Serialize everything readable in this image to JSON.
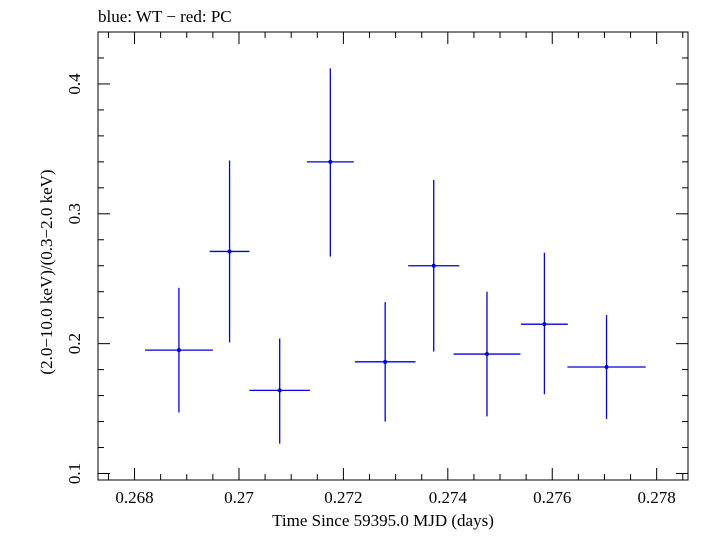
{
  "title": "blue: WT − red: PC",
  "chart_data": {
    "type": "scatter",
    "title": "blue: WT − red: PC",
    "xlabel": "Time Since 59395.0 MJD (days)",
    "ylabel": "(2.0−10.0 keV)/(0.3−2.0 keV)",
    "xlim": [
      0.2673,
      0.2786
    ],
    "ylim": [
      0.095,
      0.44
    ],
    "x_ticks": [
      {
        "value": 0.268,
        "label": "0.268"
      },
      {
        "value": 0.27,
        "label": "0.27"
      },
      {
        "value": 0.272,
        "label": "0.272"
      },
      {
        "value": 0.274,
        "label": "0.274"
      },
      {
        "value": 0.276,
        "label": "0.276"
      },
      {
        "value": 0.278,
        "label": "0.278"
      }
    ],
    "y_ticks": [
      {
        "value": 0.1,
        "label": "0.1"
      },
      {
        "value": 0.2,
        "label": "0.2"
      },
      {
        "value": 0.3,
        "label": "0.3"
      },
      {
        "value": 0.4,
        "label": "0.4"
      }
    ],
    "grid": false,
    "series": [
      {
        "name": "WT",
        "color": "#0000dd",
        "points": [
          {
            "x": 0.26885,
            "xerr": 0.00065,
            "y": 0.195,
            "ylo": 0.147,
            "yhi": 0.243
          },
          {
            "x": 0.26982,
            "xerr": 0.00038,
            "y": 0.271,
            "ylo": 0.201,
            "yhi": 0.341
          },
          {
            "x": 0.27078,
            "xerr": 0.00058,
            "y": 0.164,
            "ylo": 0.123,
            "yhi": 0.204
          },
          {
            "x": 0.27175,
            "xerr": 0.00045,
            "y": 0.34,
            "ylo": 0.267,
            "yhi": 0.412
          },
          {
            "x": 0.2728,
            "xerr": 0.00058,
            "y": 0.186,
            "ylo": 0.14,
            "yhi": 0.232
          },
          {
            "x": 0.27373,
            "xerr": 0.00049,
            "y": 0.26,
            "ylo": 0.194,
            "yhi": 0.326
          },
          {
            "x": 0.27475,
            "xerr": 0.00064,
            "y": 0.192,
            "ylo": 0.144,
            "yhi": 0.24
          },
          {
            "x": 0.27585,
            "xerr": 0.00045,
            "y": 0.215,
            "ylo": 0.161,
            "yhi": 0.27
          },
          {
            "x": 0.27704,
            "xerr": 0.00075,
            "y": 0.182,
            "ylo": 0.142,
            "yhi": 0.222
          }
        ]
      }
    ]
  }
}
